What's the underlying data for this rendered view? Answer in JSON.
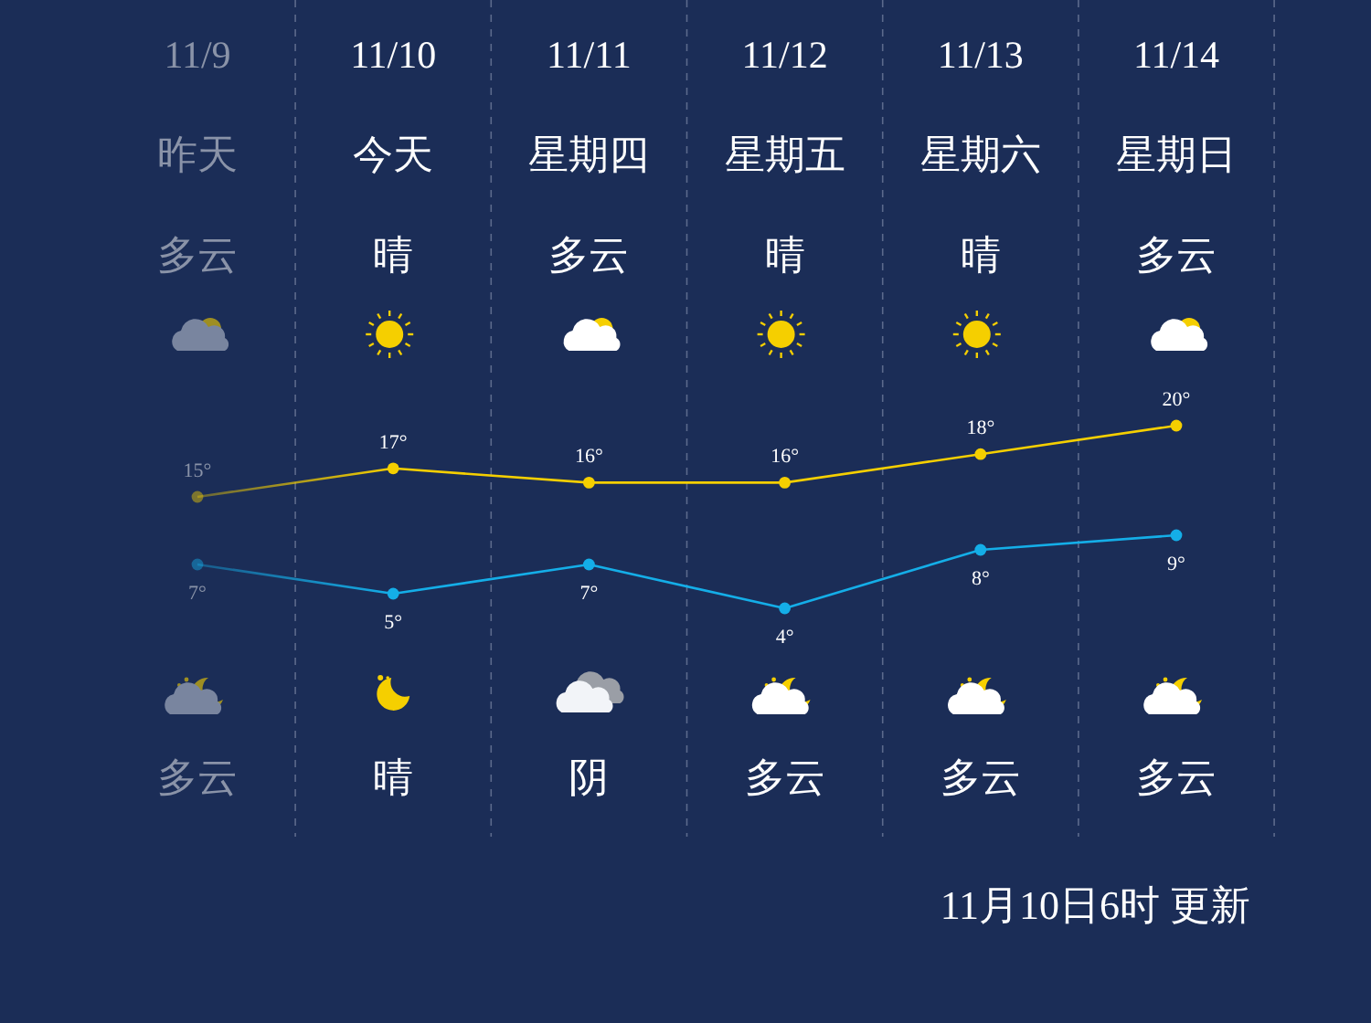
{
  "chart_data": [
    {
      "type": "line",
      "categories": [
        "11/9",
        "11/10",
        "11/11",
        "11/12",
        "11/13",
        "11/14"
      ],
      "series": [
        {
          "color": "#f5cf00",
          "values": [
            15,
            17,
            16,
            16,
            18,
            20
          ],
          "value_labels": [
            "15°",
            "17°",
            "16°",
            "16°",
            "18°",
            "20°"
          ]
        }
      ],
      "marker": "circle",
      "grid": "x",
      "tick_labels": "x",
      "annotations": [
        "昨天",
        "今天",
        "星期四",
        "星期五",
        "星期六",
        "星期日",
        "多云",
        "晴",
        "多云",
        "晴",
        "晴",
        "多云",
        "多云",
        "晴",
        "阴",
        "多云",
        "多云",
        "多云",
        "11月10日6时 更新"
      ]
    },
    {
      "type": "line",
      "categories": [
        null,
        null,
        null,
        null,
        null,
        null
      ],
      "series": [
        {
          "color": "#14aee8",
          "values": [
            7,
            5,
            7,
            4,
            8,
            9
          ],
          "value_labels": [
            "7°",
            "5°",
            "7°",
            "4°",
            "8°",
            "9°"
          ]
        }
      ],
      "marker": "circle",
      "tick_labels": false
    }
  ]
}
